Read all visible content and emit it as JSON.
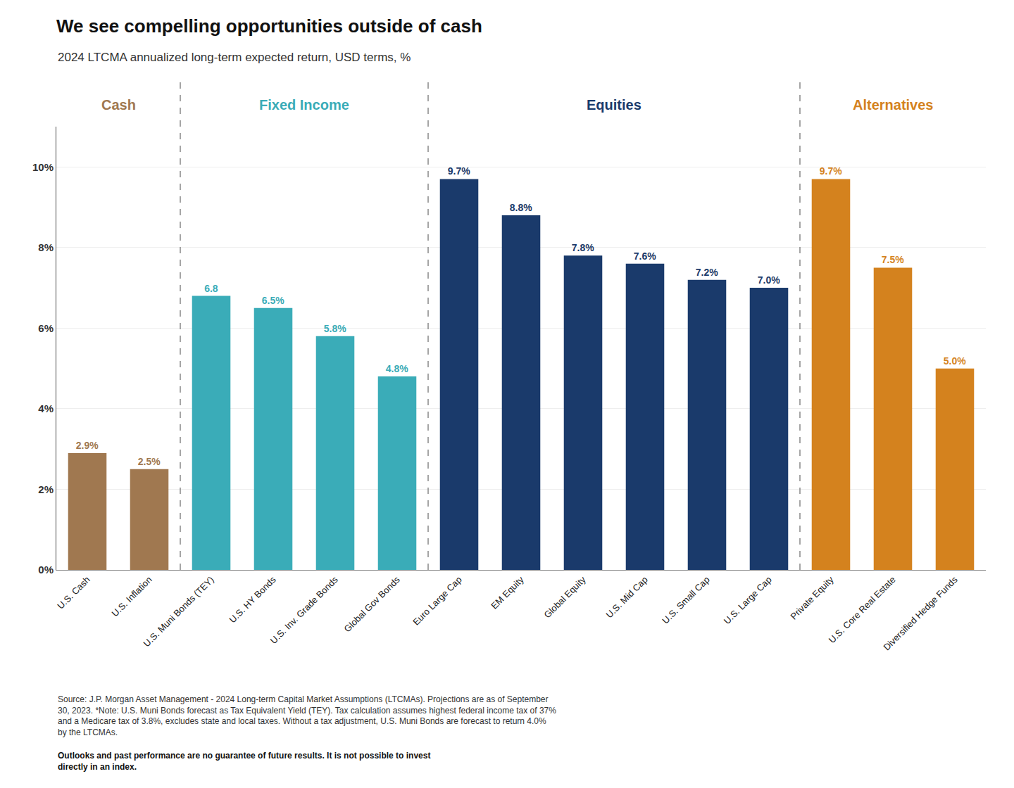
{
  "chart_data": {
    "type": "bar",
    "title": "We see compelling opportunities outside of cash",
    "subtitle": "2024 LTCMA annualized long-term expected return, USD terms, %",
    "categories": [
      "U.S. Cash",
      "U.S. Inflation",
      "U.S. Muni Bonds (TEY)",
      "U.S. HY Bonds",
      "U.S. Inv. Grade Bonds",
      "Global Gov Bonds",
      "Euro Large Cap",
      "EM Equity",
      "Global Equity",
      "U.S. Mid Cap",
      "U.S. Small Cap",
      "U.S. Large Cap",
      "Private Equity",
      "U.S. Core Real Estate",
      "Diversified Hedge Funds"
    ],
    "values": [
      2.9,
      2.5,
      6.8,
      6.5,
      5.8,
      4.8,
      9.7,
      8.8,
      7.8,
      7.6,
      7.2,
      7.0,
      9.7,
      7.5,
      5.0
    ],
    "value_labels": [
      "2.9%",
      "2.5%",
      "6.8",
      "6.5%",
      "5.8%",
      "4.8%",
      "9.7%",
      "8.8%",
      "7.8%",
      "7.6%",
      "7.2%",
      "7.0%",
      "9.7%",
      "7.5%",
      "5.0%"
    ],
    "data_labels": true,
    "colors": [
      "#a07850",
      "#a07850",
      "#3aacb8",
      "#3aacb8",
      "#3aacb8",
      "#3aacb8",
      "#1a3a6b",
      "#1a3a6b",
      "#1a3a6b",
      "#1a3a6b",
      "#1a3a6b",
      "#1a3a6b",
      "#d4821e",
      "#d4821e",
      "#d4821e"
    ],
    "groups": [
      {
        "name": "Cash",
        "color": "#a07850",
        "categories": [
          "U.S. Cash",
          "U.S. Inflation"
        ]
      },
      {
        "name": "Fixed Income",
        "color": "#3aacb8",
        "categories": [
          "U.S. Muni Bonds (TEY)",
          "U.S. HY Bonds",
          "U.S. Inv. Grade Bonds",
          "Global Gov Bonds"
        ]
      },
      {
        "name": "Equities",
        "color": "#1a3a6b",
        "categories": [
          "Euro Large Cap",
          "EM Equity",
          "Global Equity",
          "U.S. Mid Cap",
          "U.S. Small Cap",
          "U.S. Large Cap"
        ]
      },
      {
        "name": "Alternatives",
        "color": "#d4821e",
        "categories": [
          "Private Equity",
          "U.S. Core Real Estate",
          "Diversified Hedge Funds"
        ]
      }
    ],
    "ylim": [
      0,
      11.0
    ],
    "yticks": [
      {
        "value": 0,
        "label": "0%"
      },
      {
        "value": 2,
        "label": "2%"
      },
      {
        "value": 4,
        "label": "4%"
      },
      {
        "value": 6,
        "label": "6%"
      },
      {
        "value": 8,
        "label": "8%"
      },
      {
        "value": 10,
        "label": "10%"
      }
    ],
    "grid": true,
    "source": "Source: J.P. Morgan Asset Management - 2024 Long-term Capital Market Assumptions (LTCMAs). Projections are as of September\n30, 2023. *Note: U.S. Muni Bonds forecast as Tax Equivalent Yield (TEY). Tax calculation assumes highest federal income tax of 37%\nand a Medicare tax of 3.8%, excludes state and local taxes. Without a tax adjustment, U.S. Muni Bonds are forecast to return 4.0%\nby the LTCMAs.",
    "source_note": "Outlooks and past performance are no guarantee of future results. It is not possible to invest\ndirectly in an index."
  }
}
